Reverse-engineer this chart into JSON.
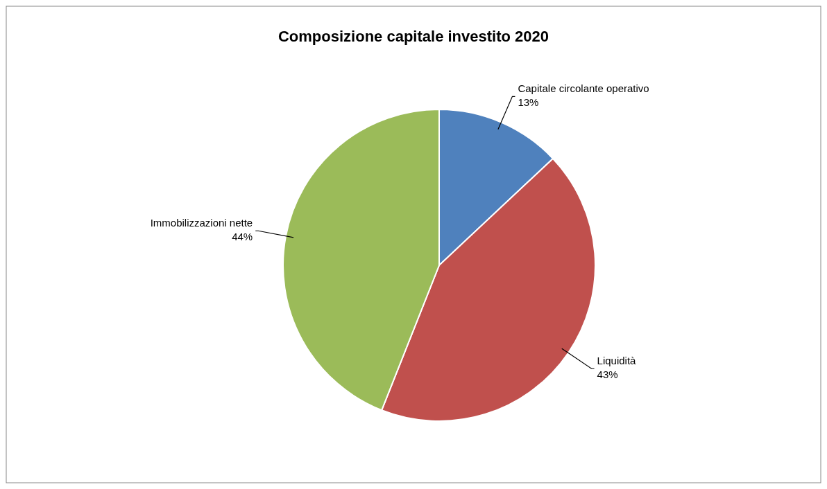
{
  "chart_data": {
    "type": "pie",
    "title": "Composizione capitale investito 2020",
    "categories": [
      "Capitale circolante operativo",
      "Liquidità",
      "Immobilizzazioni nette"
    ],
    "values": [
      13,
      43,
      44
    ],
    "value_labels": [
      "13%",
      "43%",
      "44%"
    ],
    "colors": [
      "#4f81bd",
      "#c0504d",
      "#9bbb59"
    ]
  }
}
